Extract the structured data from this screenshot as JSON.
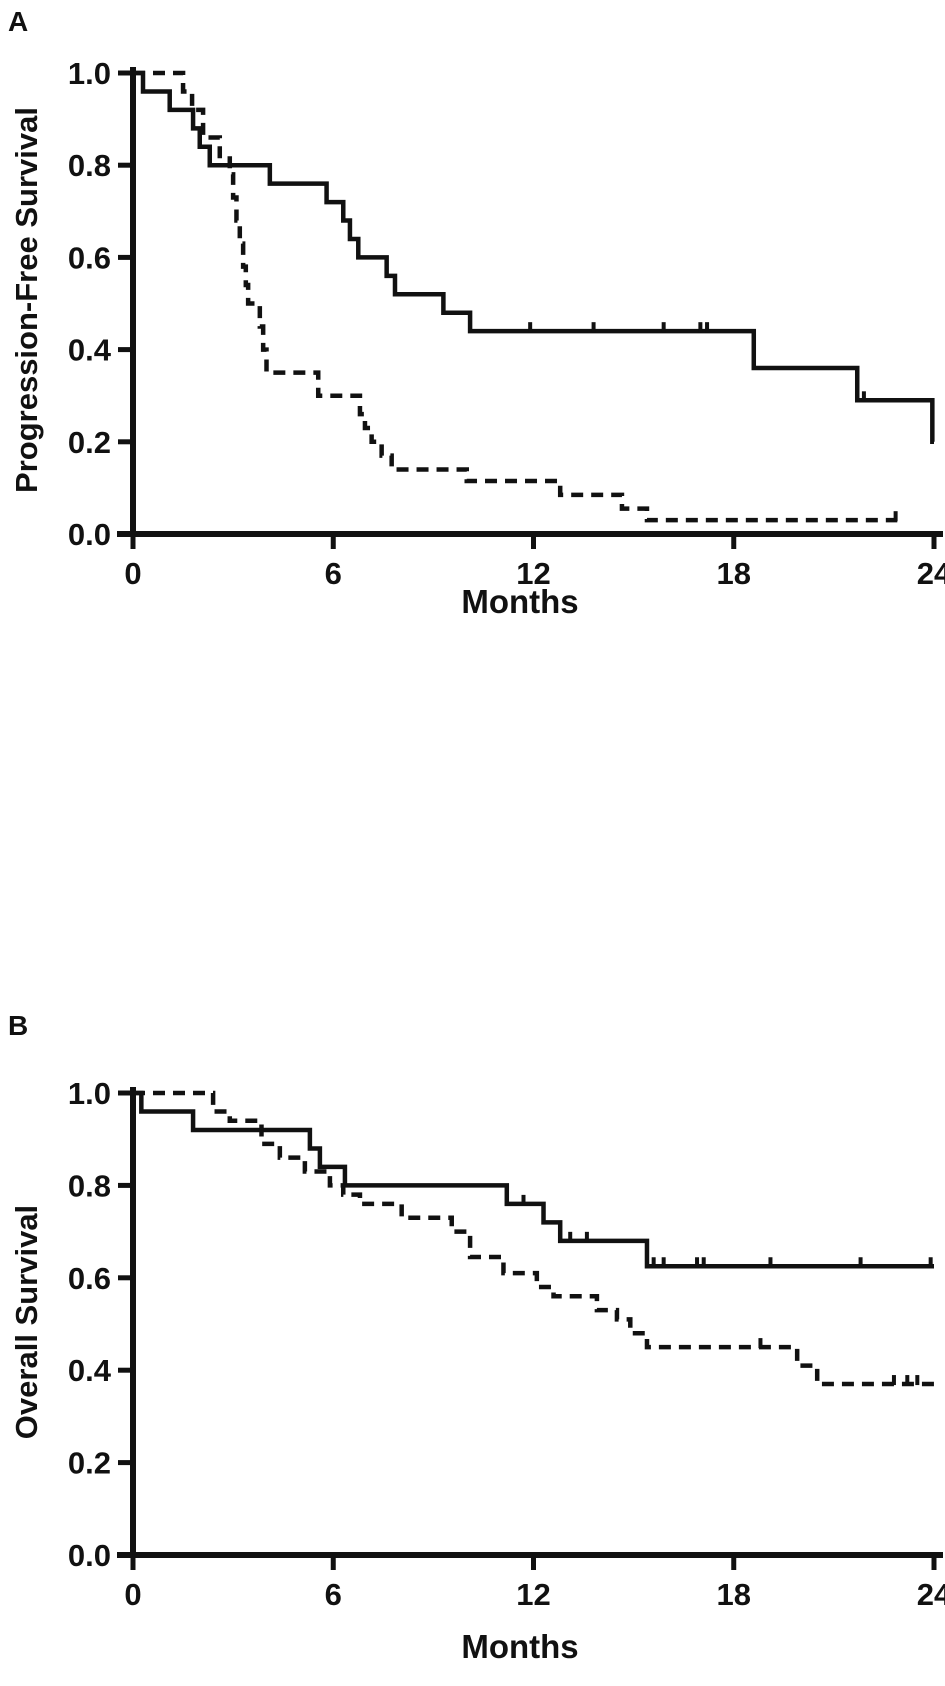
{
  "figure": {
    "curve_color": "#111111",
    "background": "#ffffff"
  },
  "chart_data": [
    {
      "type": "step-line",
      "letter": "A",
      "y_label": "Progression-Free Survival",
      "x_label": "Months",
      "x_ticks": [
        0,
        6,
        12,
        18,
        24
      ],
      "y_ticks": [
        "0.0",
        "0.2",
        "0.4",
        "0.6",
        "0.8",
        "1.0"
      ],
      "x_range": [
        0,
        24
      ],
      "y_range": [
        0.0,
        1.0
      ],
      "grid": false,
      "legend": "none",
      "series": [
        {
          "name": "solid-group",
          "style": "solid",
          "points": [
            [
              0,
              1.0
            ],
            [
              0.3,
              0.96
            ],
            [
              1.1,
              0.92
            ],
            [
              1.8,
              0.88
            ],
            [
              2.0,
              0.84
            ],
            [
              2.3,
              0.8
            ],
            [
              4.1,
              0.76
            ],
            [
              5.8,
              0.72
            ],
            [
              6.3,
              0.68
            ],
            [
              6.5,
              0.64
            ],
            [
              6.75,
              0.6
            ],
            [
              7.6,
              0.56
            ],
            [
              7.85,
              0.52
            ],
            [
              9.3,
              0.48
            ],
            [
              10.1,
              0.44
            ],
            [
              18.6,
              0.36
            ],
            [
              21.7,
              0.29
            ],
            [
              23.95,
              0.2
            ]
          ],
          "end_x": 24,
          "censor_ticks": [
            [
              11.9,
              0.44
            ],
            [
              13.8,
              0.44
            ],
            [
              15.9,
              0.44
            ],
            [
              17.0,
              0.44
            ],
            [
              17.2,
              0.44
            ],
            [
              21.9,
              0.29
            ]
          ]
        },
        {
          "name": "dashed-group",
          "style": "dashed",
          "points": [
            [
              0,
              1.0
            ],
            [
              1.5,
              0.96
            ],
            [
              1.77,
              0.92
            ],
            [
              2.1,
              0.86
            ],
            [
              2.6,
              0.82
            ],
            [
              2.9,
              0.78
            ],
            [
              3.0,
              0.73
            ],
            [
              3.1,
              0.68
            ],
            [
              3.2,
              0.63
            ],
            [
              3.3,
              0.58
            ],
            [
              3.38,
              0.54
            ],
            [
              3.45,
              0.5
            ],
            [
              3.8,
              0.45
            ],
            [
              3.9,
              0.4
            ],
            [
              4.0,
              0.35
            ],
            [
              5.55,
              0.3
            ],
            [
              6.8,
              0.26
            ],
            [
              6.95,
              0.23
            ],
            [
              7.15,
              0.2
            ],
            [
              7.45,
              0.17
            ],
            [
              7.75,
              0.14
            ],
            [
              10.0,
              0.115
            ],
            [
              12.8,
              0.085
            ],
            [
              14.65,
              0.055
            ],
            [
              15.4,
              0.03
            ]
          ],
          "end_x": 22.9,
          "censor_ticks": [
            [
              22.85,
              0.03
            ]
          ]
        }
      ]
    },
    {
      "type": "step-line",
      "letter": "B",
      "y_label": "Overall Survival",
      "x_label": "Months",
      "x_ticks": [
        0,
        6,
        12,
        18,
        24
      ],
      "y_ticks": [
        "0.0",
        "0.2",
        "0.4",
        "0.6",
        "0.8",
        "1.0"
      ],
      "x_range": [
        0,
        24
      ],
      "y_range": [
        0.0,
        1.0
      ],
      "grid": false,
      "legend": "none",
      "series": [
        {
          "name": "solid-group",
          "style": "solid",
          "points": [
            [
              0,
              1.0
            ],
            [
              0.25,
              0.96
            ],
            [
              1.8,
              0.92
            ],
            [
              5.3,
              0.88
            ],
            [
              5.6,
              0.84
            ],
            [
              6.35,
              0.8
            ],
            [
              11.2,
              0.76
            ],
            [
              12.3,
              0.72
            ],
            [
              12.8,
              0.68
            ],
            [
              15.4,
              0.625
            ]
          ],
          "end_x": 24,
          "censor_ticks": [
            [
              11.7,
              0.76
            ],
            [
              13.1,
              0.68
            ],
            [
              13.6,
              0.68
            ],
            [
              15.6,
              0.625
            ],
            [
              15.9,
              0.625
            ],
            [
              16.9,
              0.625
            ],
            [
              17.1,
              0.625
            ],
            [
              19.1,
              0.625
            ],
            [
              21.8,
              0.625
            ],
            [
              23.9,
              0.625
            ]
          ]
        },
        {
          "name": "dashed-group",
          "style": "dashed",
          "points": [
            [
              0,
              1.0
            ],
            [
              2.4,
              0.96
            ],
            [
              2.9,
              0.94
            ],
            [
              3.85,
              0.89
            ],
            [
              4.4,
              0.86
            ],
            [
              5.15,
              0.83
            ],
            [
              5.9,
              0.8
            ],
            [
              6.3,
              0.78
            ],
            [
              6.8,
              0.76
            ],
            [
              8.05,
              0.73
            ],
            [
              9.55,
              0.7
            ],
            [
              10.1,
              0.645
            ],
            [
              11.1,
              0.61
            ],
            [
              12.1,
              0.58
            ],
            [
              12.6,
              0.56
            ],
            [
              13.9,
              0.53
            ],
            [
              14.5,
              0.51
            ],
            [
              14.9,
              0.48
            ],
            [
              15.4,
              0.45
            ],
            [
              19.9,
              0.41
            ],
            [
              20.5,
              0.37
            ]
          ],
          "end_x": 24,
          "censor_ticks": [
            [
              18.8,
              0.45
            ],
            [
              22.8,
              0.37
            ],
            [
              23.2,
              0.37
            ],
            [
              23.5,
              0.37
            ]
          ]
        }
      ]
    }
  ]
}
